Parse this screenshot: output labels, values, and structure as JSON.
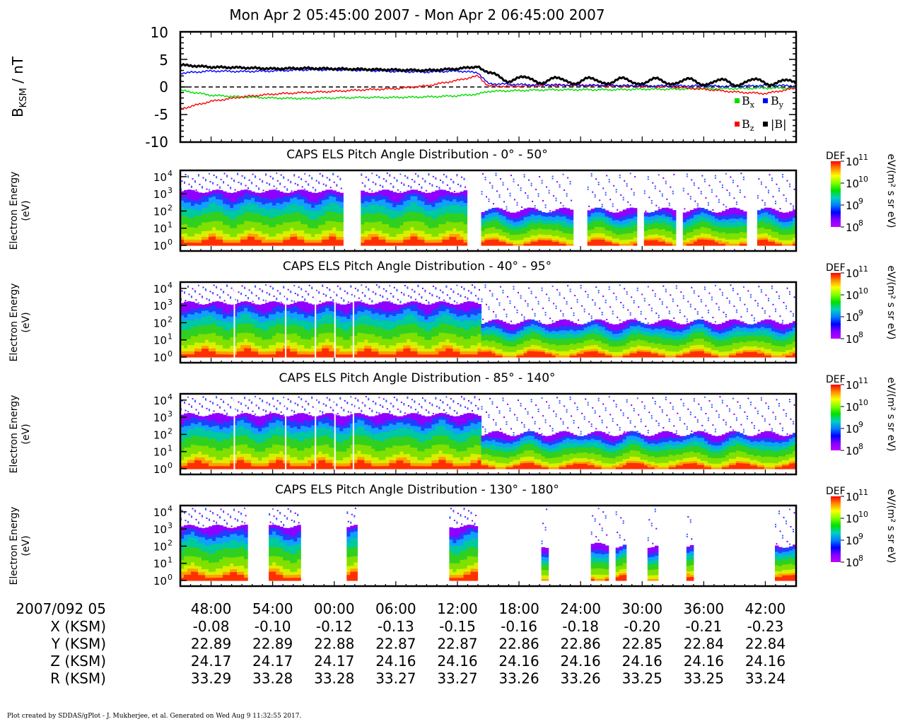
{
  "chart_data": {
    "type": "line",
    "title": "Mon Apr 2 05:45:00 2007 - Mon Apr 2 06:45:00 2007",
    "mag": {
      "ylabel_main": "B",
      "ylabel_sub": "KSM",
      "ylabel_unit": " / nT",
      "ylim": [
        -10,
        10
      ],
      "yticks": [
        "10",
        "5",
        "0",
        "-5",
        "-10"
      ],
      "legend": [
        {
          "sym": "B",
          "sub": "x",
          "color": "#00dd00"
        },
        {
          "sym": "B",
          "sub": "y",
          "color": "#0000ff"
        },
        {
          "sym": "B",
          "sub": "z",
          "color": "#ff0000"
        },
        {
          "sym": "|B|",
          "sub": "",
          "color": "#000000"
        }
      ],
      "minutes": [
        0,
        3,
        6,
        9,
        12,
        15,
        18,
        21,
        24,
        27,
        29,
        30,
        32,
        34,
        36,
        39,
        42,
        45,
        48,
        51,
        54,
        57,
        60
      ],
      "series": [
        {
          "name": "Bmag",
          "color": "#000000",
          "values": [
            4.0,
            3.6,
            3.5,
            3.3,
            3.4,
            3.3,
            3.2,
            3.1,
            3.0,
            3.3,
            3.7,
            2.2,
            1.5,
            1.3,
            1.2,
            1.1,
            1.1,
            1.0,
            1.0,
            0.9,
            0.8,
            1.0,
            0.7
          ]
        },
        {
          "name": "By",
          "color": "#0000ff",
          "values": [
            2.5,
            2.9,
            2.8,
            2.9,
            3.1,
            3.1,
            3.0,
            2.8,
            2.7,
            2.9,
            2.6,
            0.6,
            0.5,
            0.4,
            0.4,
            0.3,
            0.3,
            0.2,
            0.2,
            0.2,
            0.1,
            0.3,
            0.2
          ]
        },
        {
          "name": "Bz",
          "color": "#ff0000",
          "values": [
            -4.0,
            -2.6,
            -1.8,
            -1.3,
            -1.0,
            -0.8,
            -0.5,
            -0.3,
            0.2,
            1.2,
            2.0,
            0.2,
            0.1,
            0.2,
            0.3,
            0.3,
            0.2,
            0.1,
            0.0,
            -0.4,
            -0.9,
            -1.2,
            -0.2
          ]
        },
        {
          "name": "Bx",
          "color": "#00dd00",
          "values": [
            -0.6,
            -1.5,
            -1.8,
            -2.0,
            -2.1,
            -2.0,
            -1.9,
            -1.9,
            -1.8,
            -1.6,
            -1.3,
            -0.8,
            -0.7,
            -0.6,
            -0.5,
            -0.5,
            -0.5,
            -0.4,
            -0.4,
            -0.3,
            -0.3,
            -0.2,
            -0.2
          ]
        }
      ]
    },
    "els": {
      "ylabel_line1": "Electron Energy",
      "ylabel_line2": "(eV)",
      "yticks": [
        "10",
        "10",
        "10",
        "10",
        "10"
      ],
      "ytick_exps": [
        "4",
        "3",
        "2",
        "1",
        "0"
      ],
      "cbar_label": "DEF",
      "cbar_unit": "eV/(m² s sr eV)",
      "cbar_ticks": [
        "10",
        "10",
        "10",
        "10"
      ],
      "cbar_exps": [
        "11",
        "10",
        "9",
        "8"
      ],
      "cbar_colors": [
        "#ff0000",
        "#ff8c00",
        "#ffff00",
        "#80ff00",
        "#00e000",
        "#00d0c0",
        "#0080ff",
        "#0000ff",
        "#8000ff",
        "#c000ff"
      ],
      "panels": [
        {
          "title": "CAPS ELS Pitch Angle Distribution - 0° - 50°",
          "gaps": [
            [
              15.6,
              17.4
            ],
            [
              27.7,
              29.3
            ],
            [
              38.2,
              39.6
            ],
            [
              44.2,
              45.0
            ],
            [
              48.0,
              48.8
            ],
            [
              55.0,
              55.9
            ]
          ]
        },
        {
          "title": "CAPS ELS Pitch Angle Distribution - 40° - 95°",
          "gaps": []
        },
        {
          "title": "CAPS ELS Pitch Angle Distribution - 85° - 140°",
          "gaps": []
        },
        {
          "title": "CAPS ELS Pitch Angle Distribution - 130° - 180°",
          "gaps": [
            [
              6.3,
              8.4
            ],
            [
              11.5,
              16.0
            ],
            [
              17.2,
              26.0
            ],
            [
              28.9,
              35.0
            ],
            [
              35.8,
              39.9
            ],
            [
              41.5,
              42.4
            ],
            [
              43.4,
              45.3
            ],
            [
              46.4,
              49.2
            ],
            [
              49.8,
              57.8
            ]
          ]
        }
      ]
    },
    "x_axis": {
      "start_label": "2007/092 05",
      "ticks": [
        "48:00",
        "54:00",
        "00:00",
        "06:00",
        "12:00",
        "18:00",
        "24:00",
        "30:00",
        "36:00",
        "42:00"
      ],
      "tick_minutes": [
        3,
        9,
        15,
        21,
        27,
        33,
        39,
        45,
        51,
        57
      ],
      "total_minutes": 60
    },
    "ephemeris": [
      {
        "label": "X (KSM)",
        "values": [
          "-0.08",
          "-0.10",
          "-0.12",
          "-0.13",
          "-0.15",
          "-0.16",
          "-0.18",
          "-0.20",
          "-0.21",
          "-0.23"
        ]
      },
      {
        "label": "Y (KSM)",
        "values": [
          "22.89",
          "22.89",
          "22.88",
          "22.87",
          "22.87",
          "22.86",
          "22.86",
          "22.85",
          "22.84",
          "22.84"
        ]
      },
      {
        "label": "Z (KSM)",
        "values": [
          "24.17",
          "24.17",
          "24.17",
          "24.16",
          "24.16",
          "24.16",
          "24.16",
          "24.16",
          "24.16",
          "24.16"
        ]
      },
      {
        "label": "R (KSM)",
        "values": [
          "33.29",
          "33.28",
          "33.28",
          "33.27",
          "33.27",
          "33.26",
          "33.26",
          "33.25",
          "33.25",
          "33.24"
        ]
      }
    ],
    "footer": "Plot created by SDDAS/gPlot - J. Mukherjee, et al.  Generated on Wed Aug 9 11:32:55 2017."
  }
}
